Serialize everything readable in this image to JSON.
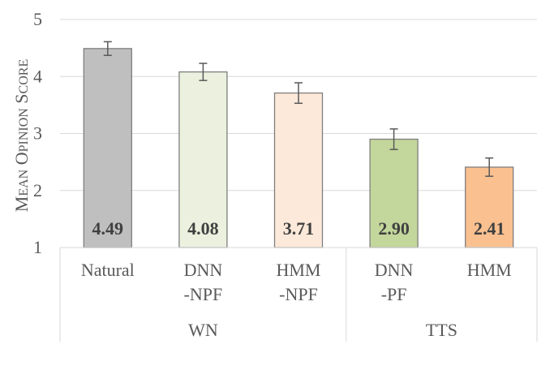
{
  "chart_data": {
    "type": "bar",
    "title": "",
    "xlabel": "",
    "ylabel": {
      "text": "Mean Opinion Score",
      "style": "small-caps"
    },
    "ylim": [
      1,
      5
    ],
    "yticks": [
      "1",
      "2",
      "3",
      "4",
      "5"
    ],
    "grid": true,
    "categories": [
      {
        "lines": [
          "Natural"
        ],
        "group": "WN"
      },
      {
        "lines": [
          "DNN",
          "-NPF"
        ],
        "group": "WN"
      },
      {
        "lines": [
          "HMM",
          "-NPF"
        ],
        "group": "WN"
      },
      {
        "lines": [
          "DNN",
          "-PF"
        ],
        "group": "TTS"
      },
      {
        "lines": [
          "HMM"
        ],
        "group": "TTS"
      }
    ],
    "groups": [
      "WN",
      "TTS"
    ],
    "values": [
      4.49,
      4.08,
      3.71,
      2.9,
      2.41
    ],
    "value_labels": [
      "4.49",
      "4.08",
      "3.71",
      "2.90",
      "2.41"
    ],
    "error_low": [
      4.37,
      3.93,
      3.53,
      2.72,
      2.25
    ],
    "error_high": [
      4.61,
      4.23,
      3.89,
      3.08,
      2.57
    ],
    "colors": {
      "fill": [
        "#bfbfbf",
        "#ebf1de",
        "#fde9d9",
        "#c3d69b",
        "#fac090"
      ],
      "stroke": [
        "#7f7f7f",
        "#7f7f7f",
        "#7f7f7f",
        "#7f7f7f",
        "#7f7f7f"
      ],
      "grid": "#d9d9d9",
      "axis_text": "#595959",
      "value_text": "#404040"
    }
  }
}
